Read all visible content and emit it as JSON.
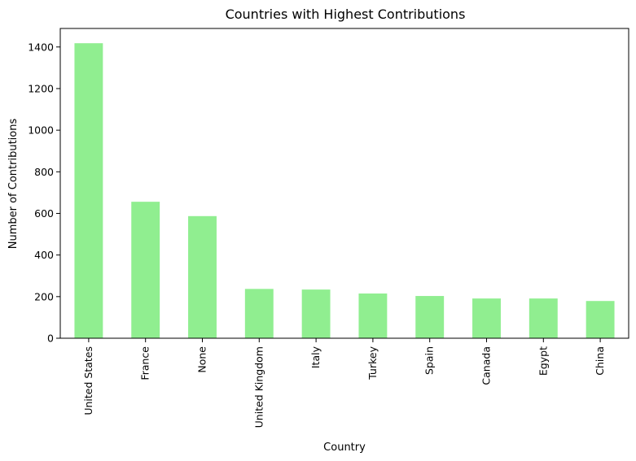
{
  "chart_data": {
    "type": "bar",
    "title": "Countries with Highest Contributions",
    "xlabel": "Country",
    "ylabel": "Number of Contributions",
    "categories": [
      "United States",
      "France",
      "None",
      "United Kingdom",
      "Italy",
      "Turkey",
      "Spain",
      "Canada",
      "Egypt",
      "China"
    ],
    "values": [
      1418,
      656,
      587,
      237,
      234,
      215,
      203,
      191,
      191,
      179
    ],
    "yticks": [
      0,
      200,
      400,
      600,
      800,
      1000,
      1200,
      1400
    ],
    "ylim": [
      0,
      1489
    ],
    "bar_color": "#90ee90",
    "grid": false,
    "legend": "none"
  }
}
